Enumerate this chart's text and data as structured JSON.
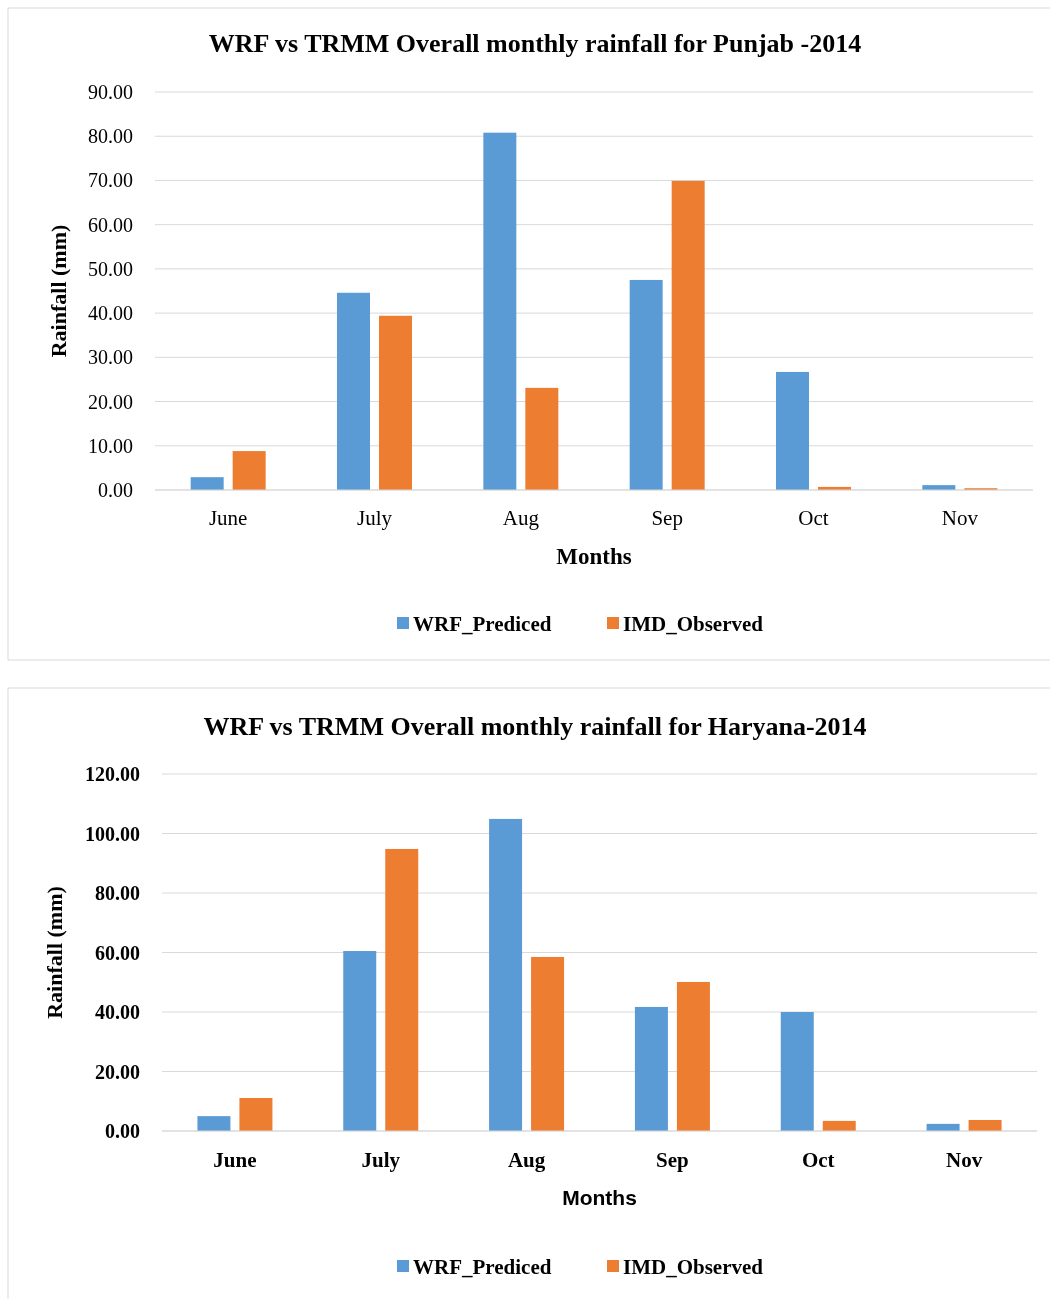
{
  "chart_data": [
    {
      "type": "bar",
      "title": "WRF vs TRMM Overall monthly rainfall for Punjab -2014",
      "xlabel": "Months",
      "ylabel": "Rainfall (mm)",
      "categories": [
        "June",
        "July",
        "Aug",
        "Sep",
        "Oct",
        "Nov"
      ],
      "series": [
        {
          "name": "WRF_Prediced",
          "color": "#5b9bd5",
          "values": [
            2.9,
            44.6,
            80.8,
            47.5,
            26.7,
            1.1
          ]
        },
        {
          "name": "IMD_Observed",
          "color": "#ed7d31",
          "values": [
            8.8,
            39.4,
            23.1,
            69.9,
            0.7,
            0.4
          ]
        }
      ],
      "ylim": [
        0,
        90
      ],
      "yticks": [
        {
          "value": 0,
          "label": "0.00"
        },
        {
          "value": 10,
          "label": "10.00"
        },
        {
          "value": 20,
          "label": "20.00"
        },
        {
          "value": 30,
          "label": "30.00"
        },
        {
          "value": 40,
          "label": "40.00"
        },
        {
          "value": 50,
          "label": "50.00"
        },
        {
          "value": 60,
          "label": "60.00"
        },
        {
          "value": 70,
          "label": "70.00"
        },
        {
          "value": 80,
          "label": "80.00"
        },
        {
          "value": 90,
          "label": "90.00"
        }
      ],
      "grid": "y",
      "legend": "bottom"
    },
    {
      "type": "bar",
      "title": "WRF vs TRMM Overall monthly rainfall for Haryana-2014",
      "xlabel": "Months",
      "ylabel": "Rainfall (mm)",
      "categories": [
        "June",
        "July",
        "Aug",
        "Sep",
        "Oct",
        "Nov"
      ],
      "series": [
        {
          "name": "WRF_Prediced",
          "color": "#5b9bd5",
          "values": [
            5.0,
            60.5,
            104.9,
            41.7,
            40.0,
            2.4
          ]
        },
        {
          "name": "IMD_Observed",
          "color": "#ed7d31",
          "values": [
            11.1,
            94.8,
            58.5,
            50.1,
            3.4,
            3.7
          ]
        }
      ],
      "ylim": [
        0,
        120
      ],
      "yticks": [
        {
          "value": 0,
          "label": "0.00"
        },
        {
          "value": 20,
          "label": "20.00"
        },
        {
          "value": 40,
          "label": "40.00"
        },
        {
          "value": 60,
          "label": "60.00"
        },
        {
          "value": 80,
          "label": "80.00"
        },
        {
          "value": 100,
          "label": "100.00"
        },
        {
          "value": 120,
          "label": "120.00"
        }
      ],
      "grid": "y",
      "legend": "bottom"
    }
  ]
}
